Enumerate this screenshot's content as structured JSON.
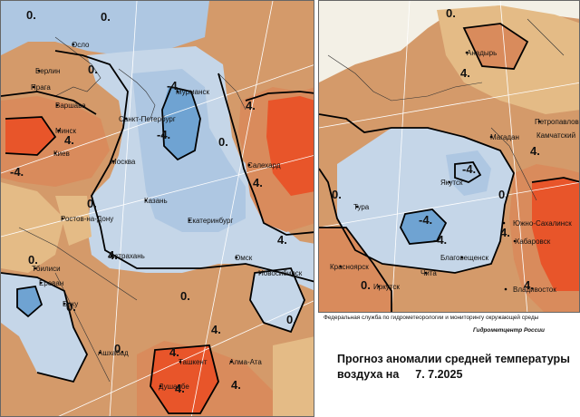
{
  "colors": {
    "ocean_blue": "#c5d6e8",
    "cold_1": "#aec7e2",
    "cold_2": "#6fa3d2",
    "neutral": "#f3f0e6",
    "warm_1": "#e4bb86",
    "warm_2": "#d98b5c",
    "warm_3": "#e8552a",
    "isoline": "#000000",
    "grid": "#ffffff"
  },
  "west_map": {
    "cities": [
      "Осло",
      "Берлин",
      "Прага",
      "Варшава",
      "Минск",
      "Киев",
      "Москва",
      "Санкт-Петербург",
      "Мурманск",
      "Салехард",
      "Казань",
      "Ростов-на-Дону",
      "Екатеринбург",
      "Астрахань",
      "Тбилиси",
      "Ереван",
      "Баку",
      "Омск",
      "Новосибирск",
      "Ашхабад",
      "Ташкент",
      "Алма-Ата",
      "Душанбе"
    ],
    "isoline_labels": [
      "0.",
      "0.",
      "0.",
      "4.",
      "-4.",
      "-4.",
      "4.",
      "-4.",
      "0.",
      "4.",
      "0.",
      "4.",
      "0.",
      "4.",
      "0.",
      "0.",
      "4.",
      "0.",
      "0.",
      "4.",
      "4.",
      "4."
    ]
  },
  "east_map": {
    "cities": [
      "Анадырь",
      "Магадан",
      "Петропавловск",
      "Камчатский",
      "Якутск",
      "Тура",
      "Южно-Сахалинск",
      "Хабаровск",
      "Благовещенск",
      "Красноярск",
      "Иркутск",
      "Чита",
      "Владивосток"
    ],
    "isoline_labels": [
      "0.",
      "4.",
      "4.",
      "0.",
      "-4.",
      "-4.",
      "-4.",
      "0.",
      "4.",
      "0.",
      "4."
    ]
  },
  "credits": {
    "org": "Федеральная служба по гидрометеорологии и мониторингу окружающей среды",
    "center": "Гидрометцентр России"
  },
  "title": {
    "line1": "Прогноз аномалии средней температуры",
    "line2": "воздуха на",
    "date": "7. 7.2025"
  }
}
